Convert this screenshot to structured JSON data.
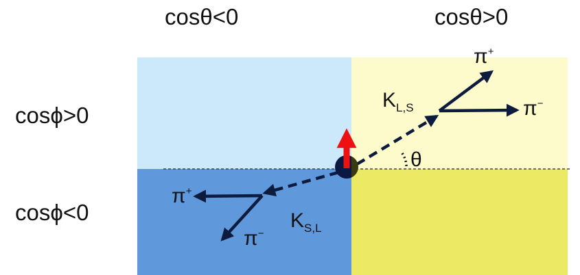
{
  "header": {
    "left": "cosθ<0",
    "right": "cosθ>0"
  },
  "rows": {
    "top": "cosϕ>0",
    "bottom": "cosϕ<0"
  },
  "quadrants": {
    "top_left_color": "#cce9fb",
    "top_right_color": "#fdfbcc",
    "bottom_left_color": "#5f98db",
    "bottom_right_color": "#ecea64"
  },
  "particles": {
    "upper_kaon": {
      "base": "K",
      "sub": "L,S"
    },
    "lower_kaon": {
      "base": "K",
      "sub": "S,L"
    },
    "upper_pi_plus": {
      "base": "π",
      "sup": "+"
    },
    "upper_pi_minus": {
      "base": "π",
      "sup": "−"
    },
    "lower_pi_plus": {
      "base": "π",
      "sup": "+"
    },
    "lower_pi_minus": {
      "base": "π",
      "sup": "−"
    }
  },
  "angle_label": "θ",
  "colors": {
    "arrow_dark": "#0d1b3e",
    "spin_arrow": "#ee1111",
    "dashed_axis": "#444444"
  }
}
